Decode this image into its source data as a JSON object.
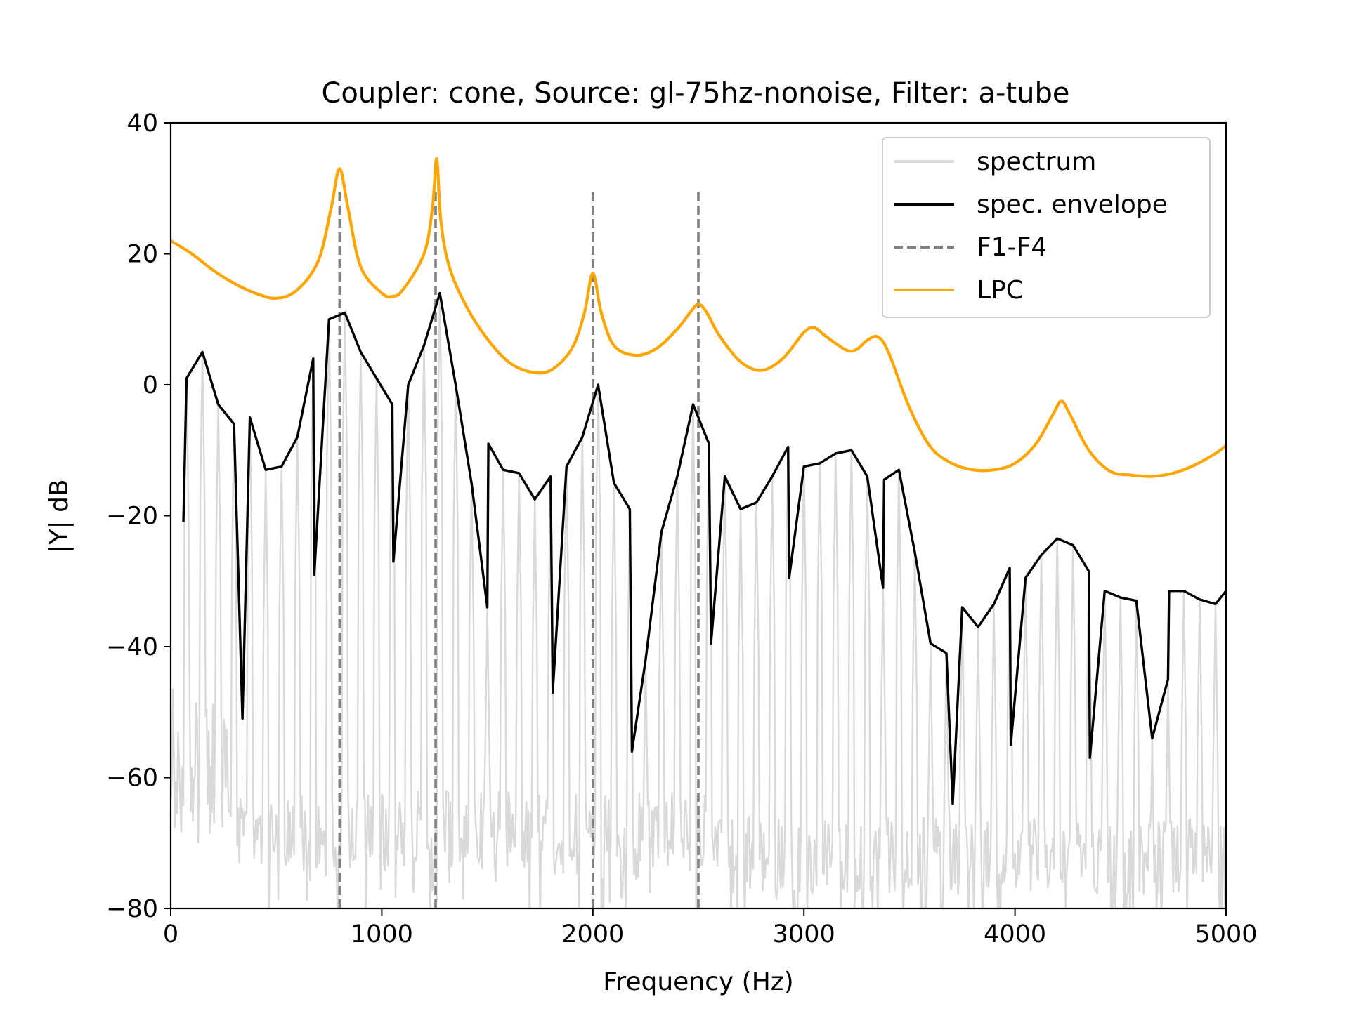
{
  "chart_data": {
    "type": "line",
    "title": "Coupler: cone, Source: gl-75hz-nonoise, Filter: a-tube",
    "xlabel": "Frequency (Hz)",
    "ylabel": "|Y| dB",
    "xlim": [
      0,
      5000
    ],
    "ylim": [
      -80,
      40
    ],
    "xticks": [
      0,
      1000,
      2000,
      3000,
      4000,
      5000
    ],
    "xtick_labels": [
      "0",
      "1000",
      "2000",
      "3000",
      "4000",
      "5000"
    ],
    "yticks": [
      -80,
      -60,
      -40,
      -20,
      0,
      20,
      40
    ],
    "ytick_labels": [
      "−80",
      "−60",
      "−40",
      "−20",
      "0",
      "20",
      "40"
    ],
    "grid": false,
    "legend_position": "top-right",
    "f0_hz": 75,
    "series": [
      {
        "name": "spectrum",
        "color": "#d9d9d9",
        "style": "solid",
        "description_values": "harmonic spectrum at multiples of 75 Hz; peaks follow the spectral envelope, floor around -60 to -80 dB"
      },
      {
        "name": "spec. envelope",
        "color": "#000000",
        "style": "solid",
        "x": [
          60,
          75,
          150,
          225,
          300,
          340,
          375,
          450,
          525,
          600,
          675,
          680,
          750,
          825,
          900,
          975,
          1050,
          1055,
          1125,
          1200,
          1275,
          1350,
          1425,
          1500,
          1505,
          1575,
          1650,
          1725,
          1800,
          1810,
          1875,
          1950,
          2025,
          2100,
          2175,
          2185,
          2250,
          2325,
          2400,
          2475,
          2550,
          2560,
          2625,
          2700,
          2775,
          2850,
          2925,
          2930,
          3000,
          3075,
          3150,
          3225,
          3300,
          3375,
          3380,
          3450,
          3525,
          3600,
          3675,
          3705,
          3750,
          3825,
          3900,
          3975,
          3980,
          4050,
          4125,
          4200,
          4275,
          4350,
          4355,
          4425,
          4500,
          4575,
          4650,
          4725,
          4730,
          4800,
          4875,
          4950,
          5000
        ],
        "y": [
          -21,
          1,
          5,
          -3,
          -6,
          -51,
          -5,
          -13,
          -12.5,
          -8,
          4,
          -29,
          10,
          11,
          5,
          1,
          -3,
          -27,
          0,
          6,
          14,
          0,
          -15,
          -34,
          -9,
          -13,
          -13.5,
          -17.5,
          -14,
          -47,
          -12.5,
          -8,
          0,
          -15,
          -19,
          -56,
          -42,
          -22.5,
          -14,
          -3,
          -9,
          -39.5,
          -14,
          -19,
          -18,
          -14,
          -9.5,
          -29.5,
          -12.5,
          -12,
          -10.5,
          -10,
          -14,
          -31,
          -14.5,
          -13,
          -25.5,
          -39.5,
          -41,
          -64,
          -34,
          -37,
          -33.5,
          -28,
          -55,
          -29.5,
          -26,
          -23.5,
          -24.5,
          -28.5,
          -57,
          -31.5,
          -32.5,
          -33,
          -54,
          -45,
          -31.5,
          -31.5,
          -32.8,
          -33.5,
          -31.5
        ]
      },
      {
        "name": "F1-F4",
        "color": "#808080",
        "style": "dashed",
        "formants_hz": [
          800,
          1255,
          2000,
          2500
        ],
        "ymin": -80,
        "ymax": 30
      },
      {
        "name": "LPC",
        "color": "#ffa500",
        "style": "solid",
        "x": [
          0,
          100,
          200,
          300,
          400,
          500,
          600,
          700,
          760,
          800,
          840,
          900,
          1000,
          1050,
          1100,
          1200,
          1240,
          1260,
          1280,
          1320,
          1400,
          1500,
          1600,
          1700,
          1800,
          1900,
          1960,
          2000,
          2040,
          2100,
          2200,
          2300,
          2400,
          2460,
          2500,
          2540,
          2600,
          2700,
          2800,
          2900,
          3000,
          3050,
          3100,
          3200,
          3250,
          3300,
          3350,
          3400,
          3500,
          3600,
          3700,
          3800,
          3900,
          4000,
          4100,
          4180,
          4220,
          4260,
          4350,
          4450,
          4550,
          4650,
          4750,
          4850,
          4950,
          5000
        ],
        "y": [
          22,
          20,
          17.5,
          15.5,
          14,
          13.2,
          14.5,
          19,
          27,
          33,
          27,
          18,
          14,
          13.5,
          14.5,
          20,
          27,
          34.5,
          25,
          18,
          12,
          7,
          3.5,
          2,
          2.2,
          5.5,
          11,
          17,
          11,
          6,
          4.5,
          5.5,
          8.5,
          11,
          12.3,
          11,
          7.5,
          3.5,
          2.2,
          4,
          8,
          8.7,
          7.5,
          5.3,
          5.4,
          6.8,
          7.3,
          5,
          -3.5,
          -9.5,
          -12,
          -13,
          -13,
          -12,
          -9,
          -4.5,
          -2.5,
          -4.5,
          -10,
          -13.2,
          -13.8,
          -14,
          -13.5,
          -12.3,
          -10.5,
          -9.3
        ]
      }
    ]
  }
}
